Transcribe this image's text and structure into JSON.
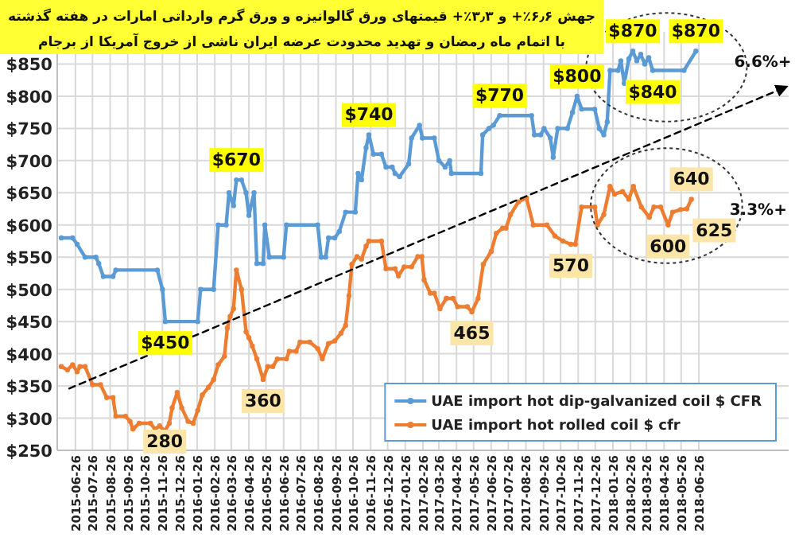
{
  "chart_data": {
    "type": "line",
    "title": "جهش ۶٫۶٪+ و ۳٫۳٪+ قیمتهای ورق گالوانیزه و ورق گرم وارداتی امارات در هفته گذشته",
    "subtitle": "با اتمام ماه رمضان و تهدید محدودت عرضه ایران ناشی از خروج آمریکا از برجام",
    "legend": "bottom right",
    "grid": true,
    "marker": "circle",
    "xlim": [
      "2015-05-25",
      "2018-12-01"
    ],
    "ylim": [
      250,
      900
    ],
    "yticks": [
      {
        "value": 250,
        "label": "$250"
      },
      {
        "value": 300,
        "label": "$300"
      },
      {
        "value": 350,
        "label": "$350"
      },
      {
        "value": 400,
        "label": "$400"
      },
      {
        "value": 450,
        "label": "$450"
      },
      {
        "value": 500,
        "label": "$500"
      },
      {
        "value": 550,
        "label": "$550"
      },
      {
        "value": 600,
        "label": "$600"
      },
      {
        "value": 650,
        "label": "$650"
      },
      {
        "value": 700,
        "label": "$700"
      },
      {
        "value": 750,
        "label": "$750"
      },
      {
        "value": 800,
        "label": "$800"
      },
      {
        "value": 850,
        "label": "$850"
      }
    ],
    "xticks": [
      "2015-06-26",
      "2015-07-26",
      "2015-08-26",
      "2015-09-26",
      "2015-10-26",
      "2015-11-26",
      "2015-12-26",
      "2016-01-26",
      "2016-02-26",
      "2016-03-26",
      "2016-04-26",
      "2016-05-26",
      "2016-06-26",
      "2016-07-26",
      "2016-08-26",
      "2016-09-26",
      "2016-10-26",
      "2016-11-26",
      "2016-12-26",
      "2017-01-26",
      "2017-02-26",
      "2017-03-26",
      "2017-04-26",
      "2017-05-26",
      "2017-06-26",
      "2017-07-26",
      "2017-08-26",
      "2017-09-26",
      "2017-10-26",
      "2017-11-26",
      "2017-12-26",
      "2018-01-26",
      "2018-02-26",
      "2018-03-26",
      "2018-04-26",
      "2018-05-26",
      "2018-06-26"
    ],
    "series": [
      {
        "name": "UAE import hot dip-galvanized coil $ CFR",
        "color": "#5b9bd5",
        "x": [
          "2015-06-01",
          "2015-06-21",
          "2015-06-29",
          "2015-07-13",
          "2015-08-01",
          "2015-08-06",
          "2015-08-14",
          "2015-08-31",
          "2015-09-05",
          "2015-11-17",
          "2015-11-26",
          "2015-12-01",
          "2016-01-27",
          "2016-02-01",
          "2016-02-24",
          "2016-03-03",
          "2016-03-17",
          "2016-03-22",
          "2016-03-30",
          "2016-04-04",
          "2016-04-13",
          "2016-04-21",
          "2016-04-26",
          "2016-05-05",
          "2016-05-10",
          "2016-05-21",
          "2016-05-24",
          "2016-06-01",
          "2016-06-26",
          "2016-07-01",
          "2016-08-25",
          "2016-08-31",
          "2016-09-08",
          "2016-09-13",
          "2016-09-24",
          "2016-10-02",
          "2016-10-13",
          "2016-10-30",
          "2016-11-04",
          "2016-11-10",
          "2016-11-18",
          "2016-11-23",
          "2016-12-01",
          "2016-12-15",
          "2016-12-23",
          "2017-01-03",
          "2017-01-08",
          "2017-01-16",
          "2017-02-01",
          "2017-02-06",
          "2017-02-20",
          "2017-02-25",
          "2017-03-18",
          "2017-03-26",
          "2017-04-06",
          "2017-04-14",
          "2017-04-17",
          "2017-06-08",
          "2017-06-11",
          "2017-06-22",
          "2017-06-30",
          "2017-07-11",
          "2017-09-05",
          "2017-09-10",
          "2017-09-21",
          "2017-09-27",
          "2017-10-08",
          "2017-10-13",
          "2017-10-21",
          "2017-11-07",
          "2017-11-16",
          "2017-11-24",
          "2017-12-02",
          "2017-12-25",
          "2018-01-02",
          "2018-01-10",
          "2018-01-16",
          "2018-01-21",
          "2018-02-04",
          "2018-02-09",
          "2018-02-15",
          "2018-02-23",
          "2018-03-02",
          "2018-03-09",
          "2018-03-16",
          "2018-03-23",
          "2018-03-30",
          "2018-04-06",
          "2018-05-31",
          "2018-06-21"
        ],
        "values": [
          580,
          580,
          570,
          550,
          550,
          540,
          520,
          520,
          530,
          530,
          500,
          450,
          450,
          500,
          500,
          600,
          600,
          650,
          630,
          670,
          670,
          650,
          615,
          650,
          540,
          540,
          600,
          550,
          550,
          600,
          600,
          550,
          550,
          580,
          580,
          590,
          620,
          620,
          680,
          670,
          720,
          740,
          710,
          710,
          690,
          690,
          680,
          675,
          695,
          735,
          755,
          735,
          735,
          700,
          690,
          700,
          680,
          680,
          740,
          750,
          755,
          770,
          770,
          740,
          740,
          750,
          735,
          705,
          750,
          750,
          775,
          800,
          780,
          780,
          750,
          740,
          760,
          840,
          840,
          855,
          820,
          858,
          870,
          855,
          865,
          850,
          860,
          840,
          840,
          870
        ]
      },
      {
        "name": "UAE import hot rolled coil $ cfr",
        "color": "#ed7d31",
        "x": [
          "2015-06-01",
          "2015-06-12",
          "2015-06-21",
          "2015-06-29",
          "2015-07-04",
          "2015-07-13",
          "2015-07-26",
          "2015-08-09",
          "2015-08-20",
          "2015-08-31",
          "2015-09-05",
          "2015-09-22",
          "2015-09-30",
          "2015-10-05",
          "2015-10-16",
          "2015-11-05",
          "2015-11-13",
          "2015-11-21",
          "2015-11-30",
          "2015-12-08",
          "2015-12-13",
          "2015-12-22",
          "2015-12-30",
          "2016-01-10",
          "2016-01-19",
          "2016-01-27",
          "2016-02-04",
          "2016-02-15",
          "2016-02-24",
          "2016-03-03",
          "2016-03-14",
          "2016-03-19",
          "2016-03-24",
          "2016-03-30",
          "2016-04-04",
          "2016-04-13",
          "2016-04-21",
          "2016-04-26",
          "2016-05-02",
          "2016-05-10",
          "2016-05-21",
          "2016-05-29",
          "2016-06-07",
          "2016-06-15",
          "2016-07-01",
          "2016-07-06",
          "2016-07-18",
          "2016-07-25",
          "2016-08-11",
          "2016-08-25",
          "2016-09-02",
          "2016-09-13",
          "2016-09-24",
          "2016-10-05",
          "2016-10-13",
          "2016-10-19",
          "2016-10-24",
          "2016-11-02",
          "2016-11-10",
          "2016-11-18",
          "2016-11-23",
          "2016-12-15",
          "2016-12-23",
          "2017-01-08",
          "2017-01-14",
          "2017-01-24",
          "2017-02-06",
          "2017-02-17",
          "2017-02-24",
          "2017-02-28",
          "2017-03-11",
          "2017-03-18",
          "2017-03-28",
          "2017-04-08",
          "2017-04-20",
          "2017-04-28",
          "2017-05-15",
          "2017-05-23",
          "2017-06-03",
          "2017-06-12",
          "2017-06-26",
          "2017-07-05",
          "2017-07-16",
          "2017-07-22",
          "2017-07-30",
          "2017-08-13",
          "2017-08-27",
          "2017-09-08",
          "2017-10-02",
          "2017-10-16",
          "2017-10-30",
          "2017-11-13",
          "2017-11-21",
          "2017-12-02",
          "2017-12-25",
          "2017-12-30",
          "2018-01-10",
          "2018-01-21",
          "2018-01-29",
          "2018-02-12",
          "2018-02-23",
          "2018-03-03",
          "2018-03-17",
          "2018-03-31",
          "2018-04-08",
          "2018-04-20",
          "2018-05-03",
          "2018-05-11",
          "2018-05-25",
          "2018-06-05",
          "2018-06-13"
        ],
        "values": [
          380,
          375,
          383,
          372,
          380,
          380,
          352,
          352,
          332,
          332,
          303,
          303,
          295,
          283,
          292,
          292,
          283,
          288,
          280,
          292,
          316,
          340,
          316,
          295,
          292,
          312,
          336,
          348,
          360,
          383,
          396,
          440,
          458,
          470,
          530,
          500,
          434,
          425,
          412,
          392,
          360,
          380,
          380,
          392,
          392,
          404,
          404,
          418,
          418,
          408,
          392,
          416,
          420,
          432,
          444,
          490,
          539,
          551,
          547,
          567,
          575,
          575,
          532,
          532,
          521,
          535,
          535,
          551,
          551,
          515,
          494,
          494,
          470,
          486,
          486,
          473,
          473,
          465,
          486,
          539,
          559,
          587,
          595,
          595,
          616,
          636,
          642,
          600,
          600,
          583,
          575,
          570,
          570,
          628,
          628,
          600,
          616,
          660,
          648,
          652,
          640,
          660,
          628,
          612,
          628,
          628,
          600,
          620,
          624,
          625,
          640
        ]
      },
      {
        "type": "line",
        "color": "#000000",
        "line_style": "dashed",
        "marker": "none",
        "x": [
          "2015-06-15",
          "2018-11-28"
        ],
        "values": [
          346,
          815
        ]
      }
    ],
    "annotations": [
      {
        "text": "$450",
        "x": "2015-12-01",
        "y": 450
      },
      {
        "text": "$670",
        "x": "2016-04-04",
        "y": 670
      },
      {
        "text": "$740",
        "x": "2016-11-23",
        "y": 740
      },
      {
        "text": "$770",
        "x": "2017-07-11",
        "y": 770
      },
      {
        "text": "$800",
        "x": "2017-11-24",
        "y": 800
      },
      {
        "text": "$870",
        "x": "2018-03-02",
        "y": 870
      },
      {
        "text": "$840",
        "x": "2018-04-06",
        "y": 840
      },
      {
        "text": "$870",
        "x": "2018-06-21",
        "y": 870
      },
      "6.6%+",
      {
        "text": "280",
        "x": "2015-11-30",
        "y": 280
      },
      {
        "text": "360",
        "x": "2016-05-21",
        "y": 360
      },
      {
        "text": "465",
        "x": "2017-05-23",
        "y": 465
      },
      {
        "text": "570",
        "x": "2017-11-13",
        "y": 570
      },
      {
        "text": "600",
        "x": "2018-05-03",
        "y": 600
      },
      {
        "text": "625",
        "x": "2018-06-05",
        "y": 625
      },
      {
        "text": "640",
        "x": "2018-06-13",
        "y": 640
      },
      "3.3%+"
    ]
  }
}
